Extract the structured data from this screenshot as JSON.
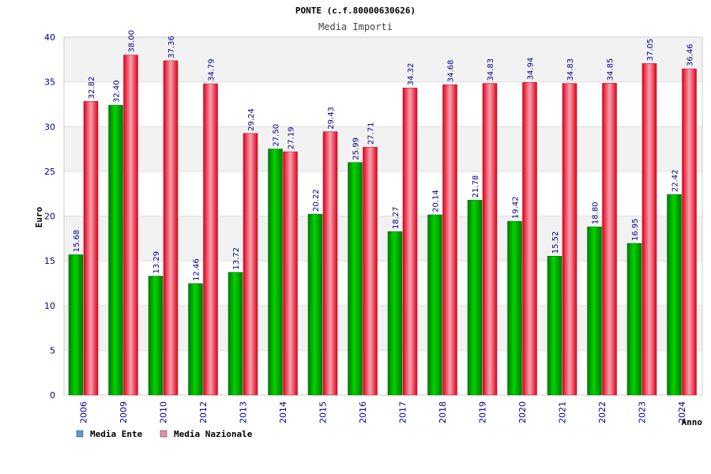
{
  "chart_data": {
    "type": "bar",
    "title": "PONTE (c.f.80000630626)",
    "subtitle": "Media Importi",
    "xlabel": "Anno",
    "ylabel": "Euro",
    "ylim": [
      0,
      40
    ],
    "yticks": [
      0,
      5,
      10,
      15,
      20,
      25,
      30,
      35,
      40
    ],
    "grid": true,
    "legend_position": "bottom-left",
    "categories": [
      "2006",
      "2009",
      "2010",
      "2012",
      "2013",
      "2014",
      "2015",
      "2016",
      "2017",
      "2018",
      "2019",
      "2020",
      "2021",
      "2022",
      "2023",
      "2024"
    ],
    "series": [
      {
        "name": "Media Ente",
        "legend_color": "#5b9bd5",
        "bar_color": "#00b000",
        "values": [
          15.68,
          32.4,
          13.29,
          12.46,
          13.72,
          27.5,
          20.22,
          25.99,
          18.27,
          20.14,
          21.78,
          19.42,
          15.52,
          18.8,
          16.95,
          22.42
        ],
        "labels": [
          "15.68",
          "32.40",
          "13.29",
          "12.46",
          "13.72",
          "27.50",
          "20.22",
          "25.99",
          "18.27",
          "20.14",
          "21.78",
          "19.42",
          "15.52",
          "18.80",
          "16.95",
          "22.42"
        ]
      },
      {
        "name": "Media Nazionale",
        "legend_color": "#e58fb0",
        "bar_color": "#e8001a",
        "values": [
          32.82,
          38.0,
          37.36,
          34.79,
          29.24,
          27.19,
          29.43,
          27.71,
          34.32,
          34.68,
          34.83,
          34.94,
          34.83,
          34.85,
          37.05,
          36.46
        ],
        "labels": [
          "32.82",
          "38.00",
          "37.36",
          "34.79",
          "29.24",
          "27.19",
          "29.43",
          "27.71",
          "34.32",
          "34.68",
          "34.83",
          "34.94",
          "34.83",
          "34.85",
          "37.05",
          "36.46"
        ]
      }
    ]
  }
}
